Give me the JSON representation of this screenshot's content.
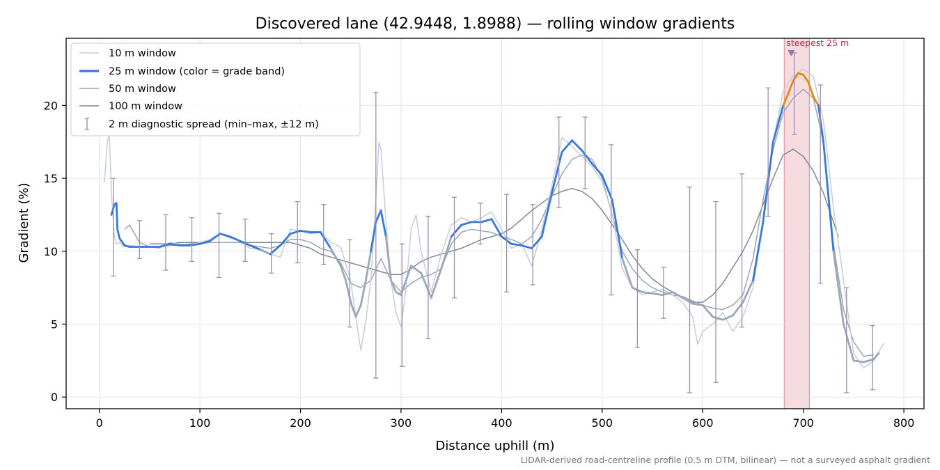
{
  "chart_data": {
    "type": "line",
    "title": "Discovered lane (42.9448, 1.8988) — rolling window gradients",
    "xlabel": "Distance uphill (m)",
    "ylabel": "Gradient (%)",
    "xlim": [
      -33,
      820
    ],
    "ylim": [
      -0.8,
      24.6
    ],
    "xticks": [
      0,
      100,
      200,
      300,
      400,
      500,
      600,
      700,
      800
    ],
    "yticks": [
      0,
      5,
      10,
      15,
      20
    ],
    "grid": true,
    "legend_position": "top-left",
    "footnote": "LiDAR-derived road-centreline profile (0.5 m DTM, bilinear) — not a surveyed asphalt gradient",
    "highlight_band": {
      "x_start": 681,
      "x_end": 706,
      "color": "#e8a4ae"
    },
    "annotation": {
      "text": "steepest 25 m",
      "x": 688,
      "y": 23.6
    },
    "grade_band_colors": {
      "low": "#9aa8b8",
      "mid": "#3a78d8",
      "high": "#e08a0a"
    },
    "series": [
      {
        "name": "10 m window",
        "color": "#c5cdd6",
        "x": [
          5,
          8,
          10,
          12,
          15,
          17,
          20,
          25,
          30,
          40,
          50,
          60,
          70,
          80,
          90,
          100,
          110,
          120,
          130,
          140,
          150,
          160,
          170,
          180,
          190,
          200,
          210,
          220,
          230,
          240,
          250,
          255,
          260,
          265,
          270,
          275,
          278,
          280,
          285,
          290,
          295,
          300,
          305,
          310,
          315,
          320,
          330,
          340,
          350,
          360,
          370,
          380,
          390,
          400,
          410,
          420,
          430,
          440,
          450,
          460,
          470,
          480,
          490,
          500,
          510,
          520,
          530,
          540,
          550,
          560,
          570,
          580,
          590,
          595,
          600,
          610,
          620,
          630,
          640,
          650,
          660,
          670,
          680,
          690,
          700,
          710,
          720,
          730,
          740,
          750,
          760,
          770,
          780
        ],
        "y": [
          14.7,
          17.5,
          18.0,
          14.0,
          11.0,
          10.5,
          10.6,
          10.3,
          10.4,
          10.3,
          10.3,
          10.2,
          10.6,
          10.5,
          10.4,
          10.6,
          10.8,
          11.2,
          10.9,
          10.7,
          10.2,
          10.2,
          9.8,
          9.6,
          11.5,
          11.4,
          11.2,
          11.3,
          10.6,
          10.3,
          8.0,
          5.5,
          3.2,
          5.2,
          8.0,
          13.5,
          17.5,
          17.0,
          12.0,
          8.0,
          5.8,
          4.8,
          7.5,
          11.5,
          12.5,
          10.0,
          7.2,
          9.8,
          11.8,
          12.3,
          12.0,
          12.3,
          12.7,
          11.5,
          10.2,
          10.5,
          9.0,
          11.5,
          14.5,
          17.8,
          17.2,
          16.5,
          15.8,
          14.8,
          12.5,
          8.8,
          7.5,
          7.0,
          7.2,
          7.4,
          7.0,
          6.5,
          5.5,
          3.6,
          4.5,
          5.0,
          5.8,
          4.5,
          5.5,
          7.5,
          12.0,
          17.5,
          21.0,
          22.0,
          22.5,
          22.0,
          19.0,
          13.0,
          8.0,
          3.0,
          2.0,
          2.5,
          3.7
        ]
      },
      {
        "name": "25 m window (color = grade band)",
        "color": "#3a78d8",
        "x": [
          12,
          15,
          17,
          18,
          20,
          25,
          30,
          40,
          50,
          60,
          70,
          80,
          90,
          100,
          110,
          120,
          130,
          140,
          150,
          160,
          170,
          180,
          190,
          200,
          210,
          220,
          230,
          240,
          245,
          250,
          255,
          260,
          265,
          270,
          275,
          280,
          285,
          290,
          295,
          300,
          310,
          320,
          330,
          340,
          350,
          360,
          370,
          380,
          390,
          400,
          410,
          420,
          430,
          440,
          450,
          460,
          470,
          480,
          490,
          500,
          510,
          520,
          530,
          540,
          550,
          560,
          570,
          580,
          590,
          600,
          610,
          620,
          630,
          640,
          650,
          660,
          670,
          680,
          685,
          690,
          695,
          700,
          705,
          710,
          715,
          720,
          730,
          740,
          750,
          760,
          770,
          775
        ],
        "y": [
          12.5,
          13.2,
          13.3,
          11.5,
          10.9,
          10.4,
          10.3,
          10.3,
          10.3,
          10.3,
          10.5,
          10.4,
          10.4,
          10.5,
          10.7,
          11.2,
          11.0,
          10.7,
          10.4,
          10.1,
          9.8,
          10.4,
          11.2,
          11.4,
          11.3,
          11.3,
          10.2,
          9.0,
          8.0,
          6.5,
          5.5,
          6.3,
          8.0,
          10.0,
          12.0,
          12.8,
          11.0,
          8.0,
          7.2,
          7.0,
          9.0,
          8.5,
          6.8,
          8.8,
          11.0,
          11.8,
          12.0,
          12.0,
          12.2,
          11.0,
          10.5,
          10.4,
          10.2,
          11.0,
          14.0,
          16.8,
          17.6,
          16.9,
          16.0,
          15.2,
          13.5,
          9.5,
          7.5,
          7.2,
          7.1,
          7.0,
          7.2,
          6.8,
          6.4,
          6.3,
          5.5,
          5.3,
          5.6,
          6.5,
          8.0,
          12.0,
          17.5,
          20.0,
          20.8,
          21.7,
          22.2,
          22.1,
          21.6,
          20.6,
          20.0,
          17.5,
          10.0,
          5.0,
          2.5,
          2.4,
          2.6,
          3.0
        ]
      },
      {
        "name": "50 m window",
        "color": "#9aa6b4",
        "x": [
          25,
          30,
          40,
          50,
          60,
          70,
          80,
          90,
          100,
          110,
          120,
          130,
          140,
          150,
          160,
          170,
          180,
          190,
          200,
          210,
          220,
          230,
          240,
          250,
          260,
          270,
          280,
          290,
          300,
          310,
          320,
          330,
          340,
          350,
          360,
          370,
          380,
          390,
          400,
          410,
          420,
          430,
          440,
          450,
          460,
          470,
          480,
          490,
          500,
          510,
          520,
          530,
          540,
          550,
          560,
          570,
          580,
          590,
          600,
          610,
          620,
          630,
          640,
          650,
          660,
          670,
          680,
          690,
          700,
          710,
          720,
          730,
          740,
          750,
          760,
          770
        ],
        "y": [
          11.5,
          11.8,
          10.6,
          10.3,
          10.3,
          10.4,
          10.4,
          10.5,
          10.5,
          10.6,
          10.6,
          10.6,
          10.6,
          10.4,
          10.3,
          10.2,
          10.4,
          10.8,
          10.8,
          10.6,
          10.2,
          10.0,
          9.2,
          7.8,
          7.5,
          8.0,
          9.5,
          8.0,
          7.2,
          7.8,
          8.2,
          8.4,
          8.8,
          10.5,
          11.3,
          11.5,
          11.4,
          11.3,
          11.0,
          10.8,
          10.5,
          11.0,
          12.2,
          13.8,
          15.3,
          16.3,
          16.6,
          16.3,
          15.0,
          12.5,
          10.0,
          8.8,
          8.0,
          7.5,
          7.2,
          7.0,
          6.9,
          6.6,
          6.3,
          6.1,
          6.0,
          6.3,
          7.0,
          9.5,
          13.5,
          17.0,
          19.5,
          20.5,
          21.1,
          20.5,
          17.5,
          10.5,
          6.0,
          3.8,
          2.8,
          2.9
        ]
      },
      {
        "name": "100 m window",
        "color": "#808794",
        "x": [
          50,
          60,
          70,
          80,
          90,
          100,
          110,
          120,
          130,
          140,
          150,
          160,
          170,
          180,
          190,
          200,
          210,
          220,
          230,
          240,
          250,
          260,
          270,
          280,
          290,
          300,
          310,
          320,
          330,
          340,
          350,
          360,
          370,
          380,
          390,
          400,
          410,
          420,
          430,
          440,
          450,
          460,
          470,
          480,
          490,
          500,
          510,
          520,
          530,
          540,
          550,
          560,
          570,
          580,
          590,
          600,
          610,
          620,
          630,
          640,
          650,
          660,
          670,
          680,
          690,
          700,
          710,
          720,
          730,
          735
        ],
        "y": [
          10.5,
          10.5,
          10.5,
          10.6,
          10.6,
          10.6,
          10.6,
          10.6,
          10.6,
          10.6,
          10.6,
          10.6,
          10.6,
          10.6,
          10.6,
          10.4,
          10.2,
          9.8,
          9.6,
          9.4,
          9.2,
          9.0,
          8.8,
          8.6,
          8.4,
          8.4,
          8.8,
          9.3,
          9.6,
          9.8,
          10.0,
          10.2,
          10.5,
          10.8,
          11.0,
          11.2,
          11.6,
          12.2,
          12.8,
          13.3,
          13.8,
          14.1,
          14.3,
          14.1,
          13.6,
          12.8,
          11.8,
          10.8,
          9.7,
          8.8,
          8.1,
          7.6,
          7.2,
          6.8,
          6.5,
          6.5,
          7.0,
          7.8,
          8.9,
          10.0,
          11.4,
          13.2,
          15.0,
          16.6,
          17.0,
          16.5,
          15.5,
          14.0,
          12.0,
          11.0
        ]
      }
    ],
    "error_bars": {
      "name": "2 m diagnostic spread (min–max, ±12 m)",
      "color": "#9c8eb3",
      "points": [
        {
          "x": 14,
          "y": 11.6,
          "low": 8.3,
          "high": 15.0
        },
        {
          "x": 40,
          "y": 10.7,
          "low": 9.5,
          "high": 12.1
        },
        {
          "x": 66,
          "y": 10.6,
          "low": 8.7,
          "high": 12.5
        },
        {
          "x": 92,
          "y": 10.8,
          "low": 9.3,
          "high": 12.3
        },
        {
          "x": 119,
          "y": 10.4,
          "low": 8.2,
          "high": 12.6
        },
        {
          "x": 145,
          "y": 10.7,
          "low": 9.3,
          "high": 12.2
        },
        {
          "x": 171,
          "y": 9.8,
          "low": 8.5,
          "high": 11.2
        },
        {
          "x": 197,
          "y": 11.3,
          "low": 9.2,
          "high": 13.4
        },
        {
          "x": 223,
          "y": 11.2,
          "low": 9.1,
          "high": 13.2
        },
        {
          "x": 249,
          "y": 7.8,
          "low": 4.8,
          "high": 10.8
        },
        {
          "x": 275,
          "y": 11.1,
          "low": 1.3,
          "high": 20.9
        },
        {
          "x": 301,
          "y": 6.3,
          "low": 2.1,
          "high": 10.5
        },
        {
          "x": 327,
          "y": 8.2,
          "low": 4.0,
          "high": 12.4
        },
        {
          "x": 353,
          "y": 10.3,
          "low": 6.8,
          "high": 13.7
        },
        {
          "x": 379,
          "y": 12.3,
          "low": 10.5,
          "high": 13.3
        },
        {
          "x": 405,
          "y": 10.6,
          "low": 7.2,
          "high": 13.9
        },
        {
          "x": 431,
          "y": 10.1,
          "low": 7.7,
          "high": 13.2
        },
        {
          "x": 457,
          "y": 16.4,
          "low": 13.0,
          "high": 19.2
        },
        {
          "x": 483,
          "y": 16.6,
          "low": 14.3,
          "high": 19.2
        },
        {
          "x": 509,
          "y": 12.2,
          "low": 7.0,
          "high": 17.3
        },
        {
          "x": 535,
          "y": 6.8,
          "low": 3.4,
          "high": 10.1
        },
        {
          "x": 561,
          "y": 7.2,
          "low": 5.4,
          "high": 8.9
        },
        {
          "x": 587,
          "y": 7.4,
          "low": 0.3,
          "high": 14.4
        },
        {
          "x": 613,
          "y": 7.2,
          "low": 1.0,
          "high": 13.4
        },
        {
          "x": 639,
          "y": 10.0,
          "low": 4.8,
          "high": 15.3
        },
        {
          "x": 665,
          "y": 16.8,
          "low": 12.4,
          "high": 21.2
        },
        {
          "x": 691,
          "y": 21.4,
          "low": 18.0,
          "high": 23.6
        },
        {
          "x": 717,
          "y": 14.6,
          "low": 7.8,
          "high": 21.4
        },
        {
          "x": 743,
          "y": 3.9,
          "low": 0.3,
          "high": 7.5
        },
        {
          "x": 769,
          "y": 2.7,
          "low": 0.5,
          "high": 4.9
        }
      ]
    }
  }
}
